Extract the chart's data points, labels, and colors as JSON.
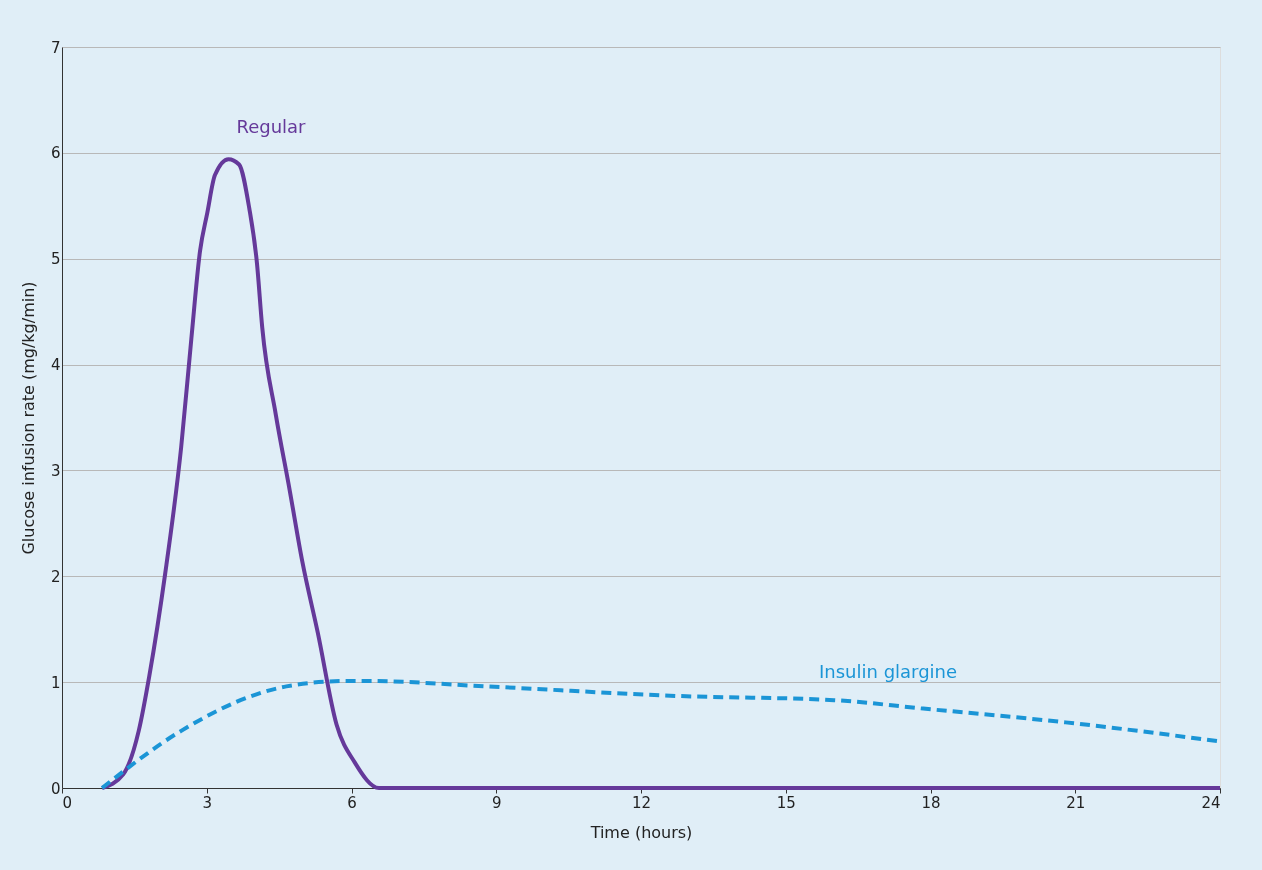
{
  "chart_data": {
    "type": "line",
    "xlabel": "Time (hours)",
    "ylabel": "Glucose infusion rate (mg/kg/min)",
    "xlim": [
      0,
      24
    ],
    "xticks": [
      0,
      3,
      6,
      9,
      12,
      15,
      18,
      21,
      24
    ],
    "ylim": [
      0,
      7
    ],
    "yticks": [
      0,
      1,
      2,
      3,
      4,
      5,
      6,
      7
    ],
    "grid": "y",
    "legend": false,
    "marker": "none",
    "series": [
      {
        "name": "Regular",
        "color": "#65399a",
        "line_style": "solid",
        "x": [
          0.83,
          1.27,
          1.59,
          1.81,
          2.14,
          2.47,
          2.68,
          2.86,
          3.01,
          3.17,
          3.45,
          3.67,
          3.88,
          4.04,
          4.15,
          4.43,
          4.72,
          4.98,
          5.3,
          5.69,
          6.07,
          6.57,
          9,
          12,
          15,
          18,
          21,
          24
        ],
        "values": [
          0,
          0.13,
          0.54,
          1.06,
          2.03,
          3.22,
          4.24,
          5.07,
          5.43,
          5.79,
          5.94,
          5.89,
          5.48,
          4.96,
          4.35,
          3.53,
          2.81,
          2.14,
          1.47,
          0.6,
          0.24,
          0,
          0,
          0,
          0,
          0,
          0,
          0
        ]
      },
      {
        "name": "Insulin glargine",
        "color": "#1b95d6",
        "line_style": "dashed",
        "x": [
          0.83,
          2.47,
          4.0,
          4.65,
          5.85,
          6.39,
          8.79,
          12.72,
          16.0,
          17.85,
          20.8,
          24
        ],
        "values": [
          0,
          0.54,
          0.88,
          0.96,
          1.01,
          1.01,
          0.96,
          0.87,
          0.83,
          0.75,
          0.62,
          0.44
        ]
      }
    ]
  }
}
